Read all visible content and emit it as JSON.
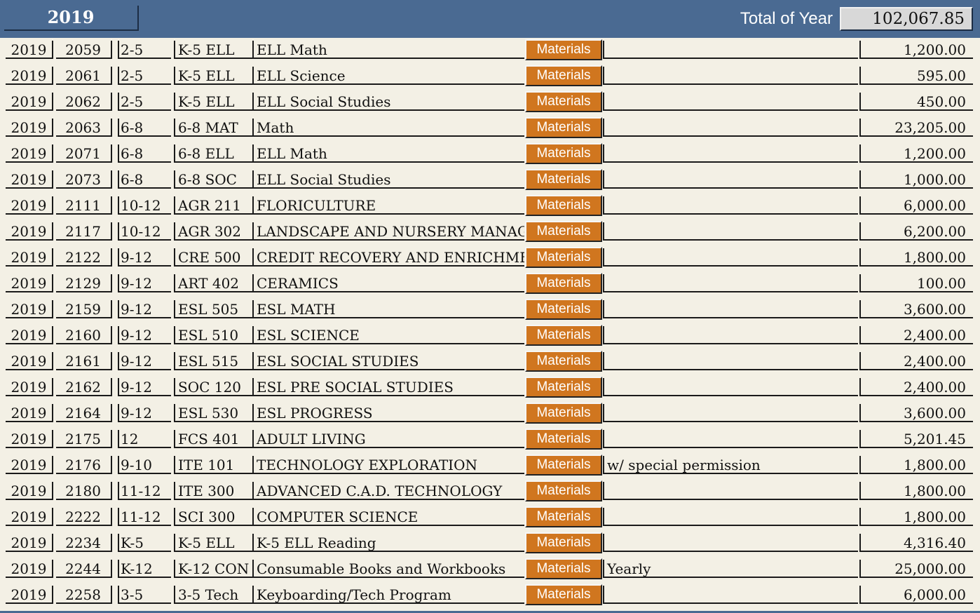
{
  "header": {
    "year": "2019",
    "total_label": "Total of Year",
    "total_value": "102,067.85"
  },
  "materials_label": "Materials",
  "rows": [
    {
      "year": "2019",
      "num": "2059",
      "grade": "2-5",
      "code": "K-5 ELL",
      "title": "ELL Math",
      "note": "",
      "amount": "1,200.00"
    },
    {
      "year": "2019",
      "num": "2061",
      "grade": "2-5",
      "code": "K-5 ELL",
      "title": "ELL Science",
      "note": "",
      "amount": "595.00"
    },
    {
      "year": "2019",
      "num": "2062",
      "grade": "2-5",
      "code": "K-5 ELL",
      "title": "ELL Social Studies",
      "note": "",
      "amount": "450.00"
    },
    {
      "year": "2019",
      "num": "2063",
      "grade": "6-8",
      "code": "6-8 MAT",
      "title": "Math",
      "note": "",
      "amount": "23,205.00"
    },
    {
      "year": "2019",
      "num": "2071",
      "grade": "6-8",
      "code": "6-8 ELL",
      "title": "ELL Math",
      "note": "",
      "amount": "1,200.00"
    },
    {
      "year": "2019",
      "num": "2073",
      "grade": "6-8",
      "code": "6-8 SOC",
      "title": "ELL Social Studies",
      "note": "",
      "amount": "1,000.00"
    },
    {
      "year": "2019",
      "num": "2111",
      "grade": "10-12",
      "code": "AGR 211",
      "title": "FLORICULTURE",
      "note": "",
      "amount": "6,000.00"
    },
    {
      "year": "2019",
      "num": "2117",
      "grade": "10-12",
      "code": "AGR 302",
      "title": "LANDSCAPE AND NURSERY MANAGE",
      "note": "",
      "amount": "6,200.00"
    },
    {
      "year": "2019",
      "num": "2122",
      "grade": "9-12",
      "code": "CRE 500",
      "title": "CREDIT RECOVERY AND ENRICHMEN",
      "note": "",
      "amount": "1,800.00"
    },
    {
      "year": "2019",
      "num": "2129",
      "grade": "9-12",
      "code": "ART 402",
      "title": "CERAMICS",
      "note": "",
      "amount": "100.00"
    },
    {
      "year": "2019",
      "num": "2159",
      "grade": "9-12",
      "code": "ESL 505",
      "title": "ESL MATH",
      "note": "",
      "amount": "3,600.00"
    },
    {
      "year": "2019",
      "num": "2160",
      "grade": "9-12",
      "code": "ESL 510",
      "title": "ESL SCIENCE",
      "note": "",
      "amount": "2,400.00"
    },
    {
      "year": "2019",
      "num": "2161",
      "grade": "9-12",
      "code": "ESL 515",
      "title": "ESL SOCIAL STUDIES",
      "note": "",
      "amount": "2,400.00"
    },
    {
      "year": "2019",
      "num": "2162",
      "grade": "9-12",
      "code": "SOC 120",
      "title": "ESL PRE SOCIAL STUDIES",
      "note": "",
      "amount": "2,400.00"
    },
    {
      "year": "2019",
      "num": "2164",
      "grade": "9-12",
      "code": "ESL 530",
      "title": "ESL PROGRESS",
      "note": "",
      "amount": "3,600.00"
    },
    {
      "year": "2019",
      "num": "2175",
      "grade": "12",
      "code": "FCS 401",
      "title": "ADULT LIVING",
      "note": "",
      "amount": "5,201.45"
    },
    {
      "year": "2019",
      "num": "2176",
      "grade": "9-10",
      "code": "ITE 101",
      "title": "TECHNOLOGY EXPLORATION",
      "note": "w/ special permission",
      "amount": "1,800.00"
    },
    {
      "year": "2019",
      "num": "2180",
      "grade": "11-12",
      "code": "ITE 300",
      "title": "ADVANCED C.A.D. TECHNOLOGY",
      "note": "",
      "amount": "1,800.00"
    },
    {
      "year": "2019",
      "num": "2222",
      "grade": "11-12",
      "code": "SCI 300",
      "title": "COMPUTER SCIENCE",
      "note": "",
      "amount": "1,800.00"
    },
    {
      "year": "2019",
      "num": "2234",
      "grade": "K-5",
      "code": "K-5 ELL",
      "title": "K-5 ELL Reading",
      "note": "",
      "amount": "4,316.40"
    },
    {
      "year": "2019",
      "num": "2244",
      "grade": "K-12",
      "code": "K-12 CON",
      "title": "Consumable Books and Workbooks",
      "note": "Yearly",
      "amount": "25,000.00"
    },
    {
      "year": "2019",
      "num": "2258",
      "grade": "3-5",
      "code": "3-5 Tech",
      "title": "Keyboarding/Tech Program",
      "note": "",
      "amount": "6,000.00"
    }
  ]
}
